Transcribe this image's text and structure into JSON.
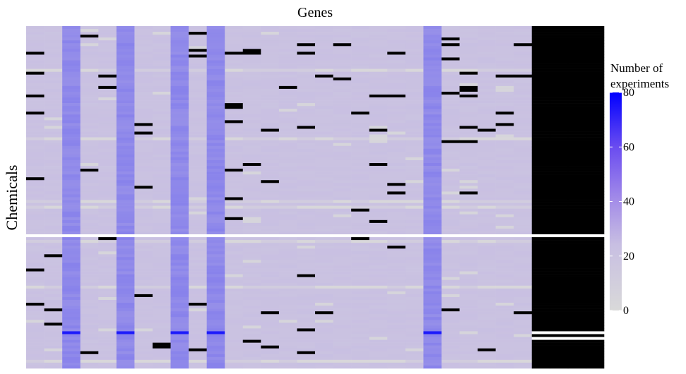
{
  "chart_data": {
    "type": "heatmap",
    "title": "Genes",
    "xlabel": "",
    "ylabel": "Chemicals",
    "legend": {
      "title_lines": [
        "Number of",
        "experiments"
      ],
      "ticks": [
        "0",
        "20",
        "40",
        "60",
        "80"
      ],
      "range": [
        0,
        80
      ],
      "position": "right"
    },
    "colors": {
      "low": "#d9d9d9",
      "mid": "#c8bfe2",
      "high": "#0000ff",
      "missing": "#000000",
      "gap": "#ffffff"
    },
    "grid": {
      "n_genes": 32,
      "n_chemicals": 120,
      "missing_gene_range": [
        28,
        31
      ],
      "high_gene_columns": [
        2,
        5,
        8,
        10,
        22,
        30
      ],
      "high_column_value": 40,
      "base_value": 22,
      "gap_rows": [
        73,
        107,
        109
      ],
      "blue_rows": [
        107
      ],
      "light_rows": [
        15,
        39,
        61,
        63,
        75,
        91,
        117
      ]
    }
  }
}
